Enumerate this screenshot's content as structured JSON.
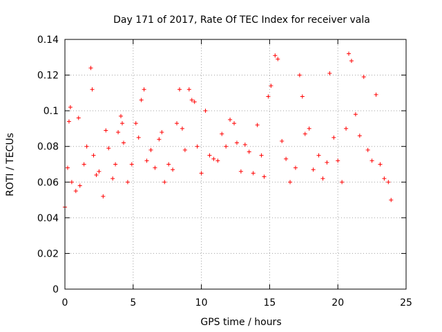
{
  "chart_data": {
    "type": "scatter",
    "title": "Day 171 of 2017, Rate Of TEC Index for receiver vala",
    "xlabel": "GPS time / hours",
    "ylabel": "ROTI / TECUs",
    "xlim": [
      0,
      25
    ],
    "ylim": [
      0,
      0.14
    ],
    "xticks": [
      "0",
      "5",
      "10",
      "15",
      "20",
      "25"
    ],
    "yticks": [
      "0",
      "0.02",
      "0.04",
      "0.06",
      "0.08",
      "0.1",
      "0.12",
      "0.14"
    ],
    "grid": true,
    "marker": "+",
    "color": "#ff0000",
    "data_extent_hours": [
      0,
      23.95
    ],
    "series": [
      {
        "x": [
          0.0,
          0.2,
          0.3,
          0.4,
          0.5,
          0.8,
          1.0,
          1.1,
          1.4,
          1.6,
          1.9,
          2.0,
          2.1,
          2.3,
          2.5,
          2.8,
          3.0,
          3.2,
          3.5,
          3.7,
          3.9,
          4.1,
          4.2,
          4.3,
          4.6,
          4.9,
          5.2,
          5.4,
          5.6,
          5.8,
          6.0,
          6.3,
          6.6,
          6.9,
          7.1,
          7.3,
          7.6,
          7.9,
          8.2,
          8.4,
          8.6,
          8.8,
          9.1,
          9.3,
          9.5,
          9.7,
          10.0,
          10.3,
          10.6,
          10.9,
          11.2,
          11.5,
          11.8,
          12.1,
          12.4,
          12.6,
          12.9,
          13.2,
          13.5,
          13.8,
          14.1,
          14.4,
          14.6,
          14.9,
          15.1,
          15.4,
          15.6,
          15.9,
          16.2,
          16.5,
          16.9,
          17.2,
          17.4,
          17.6,
          17.9,
          18.2,
          18.6,
          18.9,
          19.2,
          19.4,
          19.7,
          20.0,
          20.3,
          20.6,
          20.8,
          21.0,
          21.3,
          21.6,
          21.9,
          22.2,
          22.5,
          22.8,
          23.1,
          23.4,
          23.7,
          23.9
        ],
        "y": [
          0.046,
          0.068,
          0.094,
          0.102,
          0.06,
          0.055,
          0.096,
          0.058,
          0.07,
          0.08,
          0.124,
          0.112,
          0.075,
          0.064,
          0.066,
          0.052,
          0.089,
          0.079,
          0.062,
          0.07,
          0.088,
          0.097,
          0.093,
          0.082,
          0.06,
          0.07,
          0.093,
          0.085,
          0.106,
          0.112,
          0.072,
          0.078,
          0.068,
          0.084,
          0.088,
          0.06,
          0.07,
          0.067,
          0.093,
          0.112,
          0.09,
          0.078,
          0.112,
          0.106,
          0.105,
          0.08,
          0.065,
          0.1,
          0.075,
          0.073,
          0.072,
          0.087,
          0.08,
          0.095,
          0.093,
          0.082,
          0.066,
          0.081,
          0.077,
          0.065,
          0.092,
          0.075,
          0.063,
          0.108,
          0.114,
          0.131,
          0.129,
          0.083,
          0.073,
          0.06,
          0.068,
          0.12,
          0.108,
          0.087,
          0.09,
          0.067,
          0.075,
          0.062,
          0.071,
          0.121,
          0.085,
          0.072,
          0.06,
          0.09,
          0.132,
          0.128,
          0.098,
          0.086,
          0.119,
          0.078,
          0.072,
          0.109,
          0.07,
          0.062,
          0.06,
          0.05
        ]
      }
    ]
  }
}
